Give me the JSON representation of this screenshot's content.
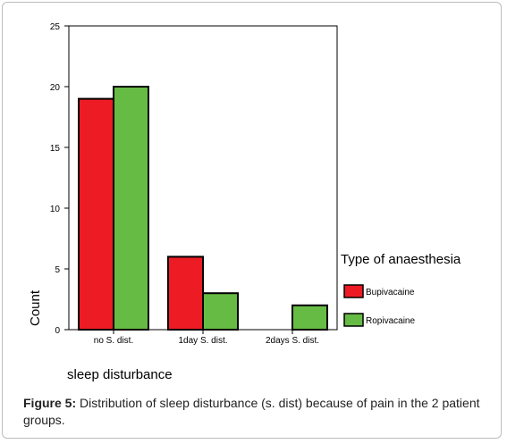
{
  "chart_data": {
    "type": "bar",
    "categories": [
      "no S. dist.",
      "1day S. dist.",
      "2days S. dist."
    ],
    "series": [
      {
        "name": "Bupivacaine",
        "values": [
          19,
          6,
          0
        ],
        "color": "#ed1c24"
      },
      {
        "name": "Ropivacaine",
        "values": [
          20,
          3,
          2
        ],
        "color": "#66bb44"
      }
    ],
    "xlabel": "sleep disturbance",
    "ylabel": "Count",
    "ylim": [
      0,
      25
    ],
    "yticks": [
      0,
      5,
      10,
      15,
      20,
      25
    ],
    "legend_title": "Type of anaesthesia",
    "legend_position": "right",
    "grid": false
  },
  "caption": {
    "label": "Figure 5:",
    "text": " Distribution of sleep disturbance (s. dist) because of pain in the 2 patient groups."
  }
}
